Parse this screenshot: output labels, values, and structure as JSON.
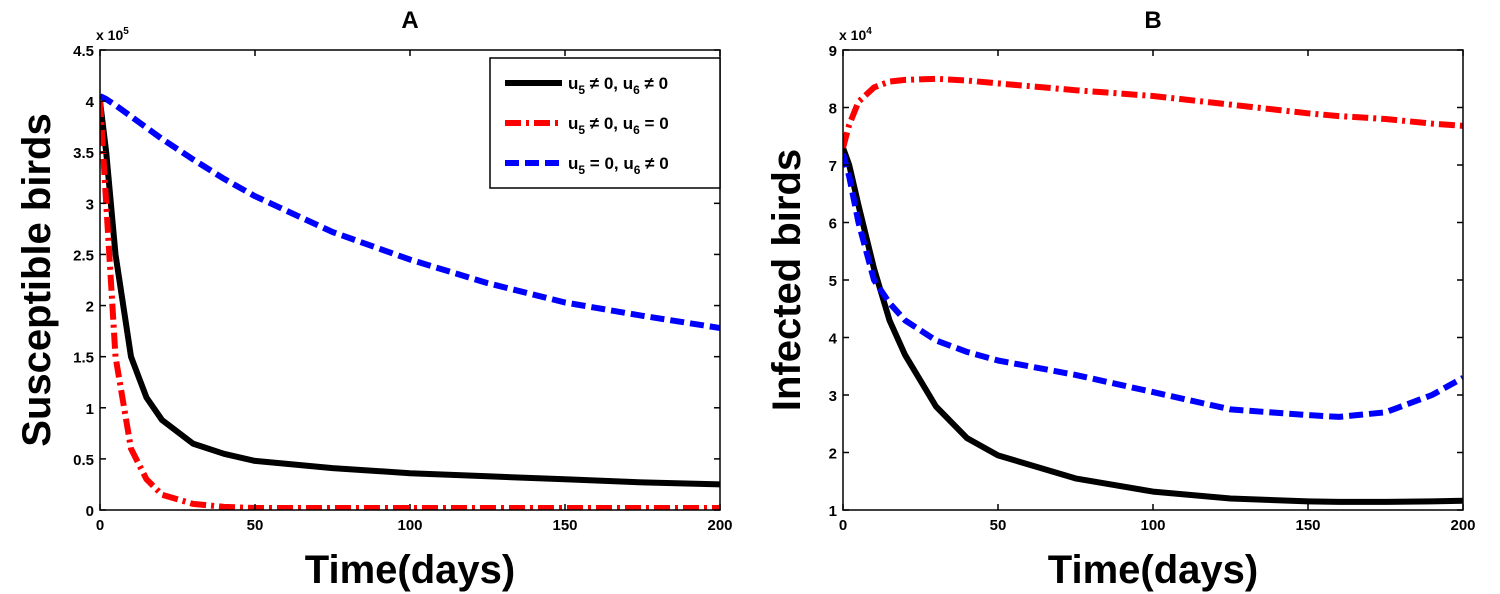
{
  "chart_data": [
    {
      "type": "line",
      "title": "A",
      "xlabel": "Time(days)",
      "ylabel": "Susceptible birds",
      "y_multiplier_base": "x 10",
      "y_multiplier_exp": "5",
      "xlim": [
        0,
        200
      ],
      "ylim": [
        0,
        4.5
      ],
      "xticks": [
        "0",
        "50",
        "100",
        "150",
        "200"
      ],
      "yticks": [
        "0",
        "0.5",
        "1",
        "1.5",
        "2",
        "2.5",
        "3",
        "3.5",
        "4",
        "4.5"
      ],
      "x": [
        0,
        2,
        5,
        10,
        15,
        20,
        30,
        40,
        50,
        75,
        100,
        125,
        150,
        175,
        200
      ],
      "series": [
        {
          "name": "u5 ≠ 0, u6 ≠ 0",
          "color": "#000000",
          "style": "solid",
          "values": [
            4.0,
            3.5,
            2.5,
            1.5,
            1.1,
            0.88,
            0.65,
            0.55,
            0.48,
            0.41,
            0.36,
            0.33,
            0.3,
            0.27,
            0.25
          ]
        },
        {
          "name": "u5 ≠ 0, u6 = 0",
          "color": "#ff0000",
          "style": "dashdot",
          "values": [
            4.0,
            3.0,
            1.5,
            0.6,
            0.3,
            0.15,
            0.06,
            0.03,
            0.02,
            0.02,
            0.02,
            0.02,
            0.02,
            0.02,
            0.02
          ]
        },
        {
          "name": "u5 = 0, u6 ≠ 0",
          "color": "#0000ff",
          "style": "dashed",
          "values": [
            4.05,
            4.02,
            3.96,
            3.85,
            3.74,
            3.63,
            3.43,
            3.24,
            3.07,
            2.72,
            2.45,
            2.22,
            2.03,
            1.9,
            1.78
          ]
        }
      ],
      "legend": {
        "position": "top-right",
        "entries": [
          {
            "base1": "u",
            "sub1": "5",
            "op1": " ≠ 0, u",
            "sub2": "6",
            "op2": " ≠ 0",
            "color": "#000000",
            "style": "solid"
          },
          {
            "base1": "u",
            "sub1": "5",
            "op1": " ≠ 0, u",
            "sub2": "6",
            "op2": " = 0",
            "color": "#ff0000",
            "style": "dashdot"
          },
          {
            "base1": "u",
            "sub1": "5",
            "op1": " = 0, u",
            "sub2": "6",
            "op2": " ≠ 0",
            "color": "#0000ff",
            "style": "dashed"
          }
        ]
      }
    },
    {
      "type": "line",
      "title": "B",
      "xlabel": "Time(days)",
      "ylabel": "Infected birds",
      "y_multiplier_base": "x 10",
      "y_multiplier_exp": "4",
      "xlim": [
        0,
        200
      ],
      "ylim": [
        1,
        9
      ],
      "xticks": [
        "0",
        "50",
        "100",
        "150",
        "200"
      ],
      "yticks": [
        "1",
        "2",
        "3",
        "4",
        "5",
        "6",
        "7",
        "8",
        "9"
      ],
      "x": [
        0,
        2,
        5,
        10,
        15,
        20,
        30,
        40,
        50,
        75,
        100,
        125,
        150,
        160,
        175,
        190,
        200
      ],
      "series": [
        {
          "name": "u5 ≠ 0, u6 ≠ 0",
          "color": "#000000",
          "style": "solid",
          "values": [
            7.3,
            7.0,
            6.3,
            5.2,
            4.3,
            3.7,
            2.8,
            2.25,
            1.95,
            1.55,
            1.32,
            1.2,
            1.15,
            1.14,
            1.14,
            1.15,
            1.16
          ]
        },
        {
          "name": "u5 ≠ 0, u6 = 0",
          "color": "#ff0000",
          "style": "dashdot",
          "values": [
            7.3,
            7.7,
            8.1,
            8.35,
            8.45,
            8.48,
            8.5,
            8.47,
            8.42,
            8.3,
            8.2,
            8.05,
            7.9,
            7.85,
            7.8,
            7.72,
            7.68
          ]
        },
        {
          "name": "u5 = 0, u6 ≠ 0",
          "color": "#0000ff",
          "style": "dashed",
          "values": [
            7.2,
            6.8,
            6.0,
            5.0,
            4.6,
            4.3,
            3.95,
            3.75,
            3.6,
            3.35,
            3.05,
            2.75,
            2.65,
            2.62,
            2.7,
            3.0,
            3.3
          ]
        }
      ]
    }
  ]
}
